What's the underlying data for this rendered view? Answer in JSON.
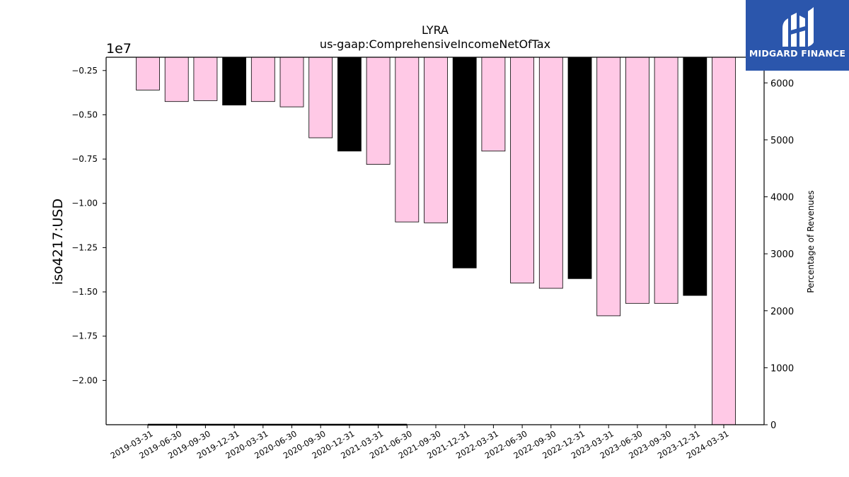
{
  "chart_data": {
    "type": "bar",
    "title": "LYRA",
    "subtitle": "us-gaap:ComprehensiveIncomeNetOfTax",
    "ylabel": "iso4217:USD",
    "y_offset_label": "1e7",
    "y2label": "Percentage of Revenues",
    "categories": [
      "2019-03-31",
      "2019-06-30",
      "2019-09-30",
      "2019-12-31",
      "2020-03-31",
      "2020-06-30",
      "2020-09-30",
      "2020-12-31",
      "2021-03-31",
      "2021-06-30",
      "2021-09-30",
      "2021-12-31",
      "2022-03-31",
      "2022-06-30",
      "2022-09-30",
      "2022-12-31",
      "2023-03-31",
      "2023-06-30",
      "2023-09-30",
      "2023-12-31",
      "2024-03-31"
    ],
    "values": [
      -3600000,
      -4250000,
      -4200000,
      -4450000,
      -4250000,
      -4550000,
      -6300000,
      -7050000,
      -7800000,
      -11050000,
      -11100000,
      -13650000,
      -7050000,
      -14500000,
      -14800000,
      -14250000,
      -16350000,
      -15650000,
      -15650000,
      -15200000,
      -22500000
    ],
    "bar_colors": [
      "#ffc9e6",
      "#ffc9e6",
      "#ffc9e6",
      "#000000",
      "#ffc9e6",
      "#ffc9e6",
      "#ffc9e6",
      "#000000",
      "#ffc9e6",
      "#ffc9e6",
      "#ffc9e6",
      "#000000",
      "#ffc9e6",
      "#ffc9e6",
      "#ffc9e6",
      "#000000",
      "#ffc9e6",
      "#ffc9e6",
      "#ffc9e6",
      "#000000",
      "#ffc9e6"
    ],
    "ylim": [
      -22500000,
      -1750000
    ],
    "yticks": [
      -2500000,
      -5000000,
      -7500000,
      -10000000,
      -12500000,
      -15000000,
      -17500000,
      -20000000
    ],
    "ytick_labels": [
      "−0.25",
      "−0.50",
      "−0.75",
      "−1.00",
      "−1.25",
      "−1.50",
      "−1.75",
      "−2.00"
    ],
    "y2lim": [
      0,
      6450
    ],
    "y2ticks": [
      0,
      1000,
      2000,
      3000,
      4000,
      5000,
      6000
    ],
    "y2_series": {
      "name": "Percentage of Revenues",
      "values": [
        0,
        0,
        0,
        0,
        0,
        0,
        0,
        0,
        0,
        0,
        null,
        null,
        null,
        null,
        null,
        null,
        null,
        null,
        null,
        null,
        null
      ],
      "color": "#000000"
    },
    "grid": false
  },
  "logo": {
    "brand": "MIDGARD FINANCE"
  }
}
